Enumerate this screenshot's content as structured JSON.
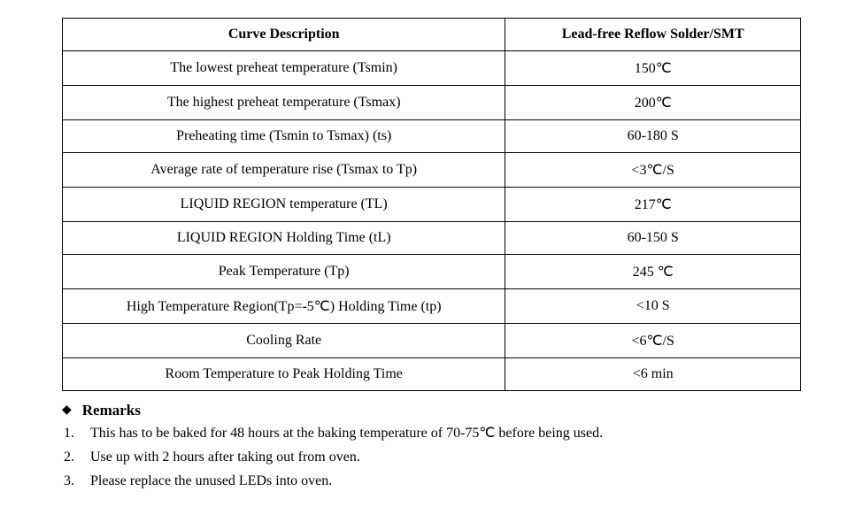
{
  "table": {
    "type": "table",
    "columns": [
      {
        "label": "Curve Description",
        "width_pct": 60,
        "align": "center"
      },
      {
        "label": "Lead-free Reflow Solder/SMT",
        "width_pct": 40,
        "align": "center"
      }
    ],
    "rows": [
      [
        "The lowest preheat temperature (Tsmin)",
        "150℃"
      ],
      [
        "The highest preheat temperature (Tsmax)",
        "200℃"
      ],
      [
        "Preheating time (Tsmin to Tsmax) (ts)",
        "60-180 S"
      ],
      [
        "Average rate of temperature rise (Tsmax to Tp)",
        "<3℃/S"
      ],
      [
        "LIQUID REGION temperature (TL)",
        "217℃"
      ],
      [
        "LIQUID REGION Holding Time (tL)",
        "60-150 S"
      ],
      [
        "Peak Temperature (Tp)",
        "245  ℃"
      ],
      [
        "High Temperature Region(Tp=-5℃) Holding Time (tp)",
        "<10 S"
      ],
      [
        "Cooling Rate",
        "<6℃/S"
      ],
      [
        "Room Temperature to Peak Holding Time",
        "<6 min"
      ]
    ],
    "border_color": "#000000",
    "header_fontweight": "bold",
    "cell_align": "center",
    "font_family": "Times New Roman",
    "header_fontsize": 16,
    "cell_fontsize": 16,
    "background_color": "#ffffff",
    "text_color": "#000000"
  },
  "remarks": {
    "bullet_glyph": "◆",
    "title": "Remarks",
    "items": [
      "This has to be baked for 48 hours at the baking temperature of 70-75℃  before being used.",
      "Use up with 2 hours after taking out from oven.",
      "Please replace the unused LEDs into oven."
    ],
    "title_fontweight": "bold",
    "title_fontsize": 17,
    "item_fontsize": 16
  }
}
